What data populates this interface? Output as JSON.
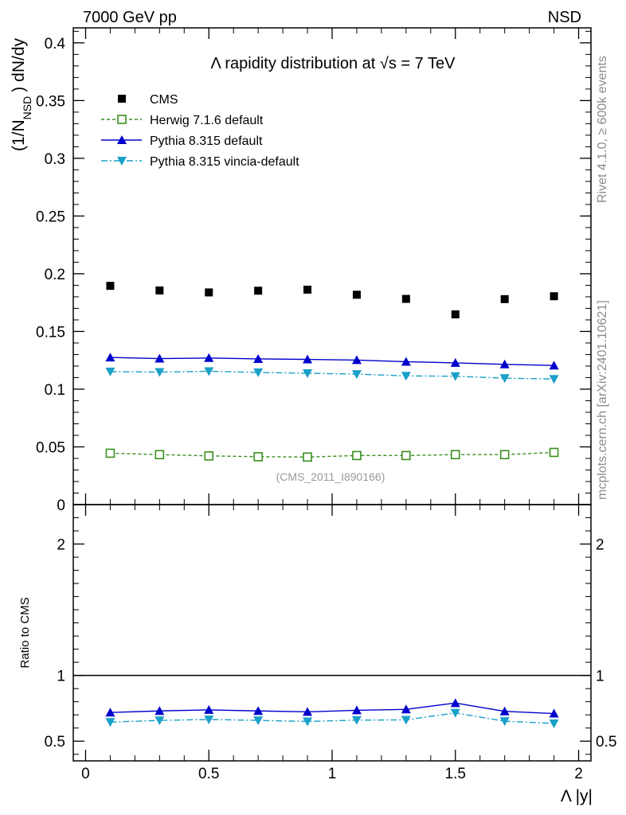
{
  "header": {
    "left_label": "7000 GeV pp",
    "right_label": "NSD"
  },
  "side_labels": {
    "rivet": "Rivet 4.1.0, ≥ 600k events",
    "mcplots": "mcplots.cern.ch [arXiv:2401.10621]"
  },
  "chart_data": [
    {
      "panel": "main",
      "type": "scatter",
      "title": "Λ rapidity distribution at √s = 7 TeV",
      "ylabel_main": "(1/N",
      "ylabel_sub": "NSD",
      "ylabel_tail": ") dN/dy",
      "xlabel": "",
      "watermark": "(CMS_2011_I890166)",
      "xlim": [
        -0.05,
        2.05
      ],
      "ylim": [
        0,
        0.413
      ],
      "yticks": [
        0,
        0.05,
        0.1,
        0.15,
        0.2,
        0.25,
        0.3,
        0.35,
        0.4
      ],
      "ytick_labels": [
        "0",
        "0.05",
        "0.1",
        "0.15",
        "0.2",
        "0.25",
        "0.3",
        "0.35",
        "0.4"
      ],
      "x": [
        0.1,
        0.3,
        0.5,
        0.7,
        0.9,
        1.1,
        1.3,
        1.5,
        1.7,
        1.9
      ],
      "legend_position": "top-left",
      "series": [
        {
          "name": "CMS",
          "color": "#000000",
          "marker": "square-filled",
          "line": "none",
          "values": [
            0.1895,
            0.1855,
            0.1838,
            0.1853,
            0.1862,
            0.1818,
            0.1782,
            0.1648,
            0.178,
            0.1805
          ]
        },
        {
          "name": "Herwig 7.1.6 default",
          "color": "#3a8f1e",
          "marker": "square-open",
          "line": "dashed",
          "values": [
            0.0445,
            0.0433,
            0.0422,
            0.0415,
            0.0412,
            0.0425,
            0.0425,
            0.0433,
            0.0433,
            0.0452
          ]
        },
        {
          "name": "Pythia 8.315 default",
          "color": "#0000cc",
          "marker": "triangle-up",
          "line": "solid",
          "values": [
            0.1275,
            0.1265,
            0.127,
            0.1262,
            0.1258,
            0.1252,
            0.1238,
            0.1228,
            0.1215,
            0.1205
          ]
        },
        {
          "name": "Pythia 8.315 vincia-default",
          "color": "#1aa0c8",
          "marker": "triangle-down",
          "line": "dashdot",
          "values": [
            0.1152,
            0.1148,
            0.1155,
            0.1145,
            0.1138,
            0.113,
            0.1115,
            0.1112,
            0.1095,
            0.1088
          ]
        }
      ]
    },
    {
      "panel": "ratio",
      "type": "line",
      "ylabel": "Ratio to CMS",
      "xlabel": "Λ |y|",
      "xlim": [
        -0.05,
        2.05
      ],
      "ylim": [
        0.35,
        2.3
      ],
      "yticks": [
        0.5,
        1,
        2
      ],
      "ytick_labels": [
        "0.5",
        "1",
        "2"
      ],
      "xticks": [
        0,
        0.5,
        1,
        1.5,
        2
      ],
      "xtick_labels": [
        "0",
        "0.5",
        "1",
        "1.5",
        "2"
      ],
      "reference_line": 1,
      "x": [
        0.1,
        0.3,
        0.5,
        0.7,
        0.9,
        1.1,
        1.3,
        1.5,
        1.7,
        1.9
      ],
      "series": [
        {
          "name": "Pythia 8.315 default",
          "color": "#0000cc",
          "marker": "triangle-up",
          "line": "solid",
          "values": [
            0.718,
            0.73,
            0.738,
            0.73,
            0.723,
            0.735,
            0.742,
            0.79,
            0.727,
            0.71
          ]
        },
        {
          "name": "Pythia 8.315 vincia-default",
          "color": "#1aa0c8",
          "marker": "triangle-down",
          "line": "dashdot",
          "values": [
            0.645,
            0.658,
            0.665,
            0.658,
            0.65,
            0.66,
            0.662,
            0.715,
            0.652,
            0.635
          ]
        }
      ]
    }
  ]
}
